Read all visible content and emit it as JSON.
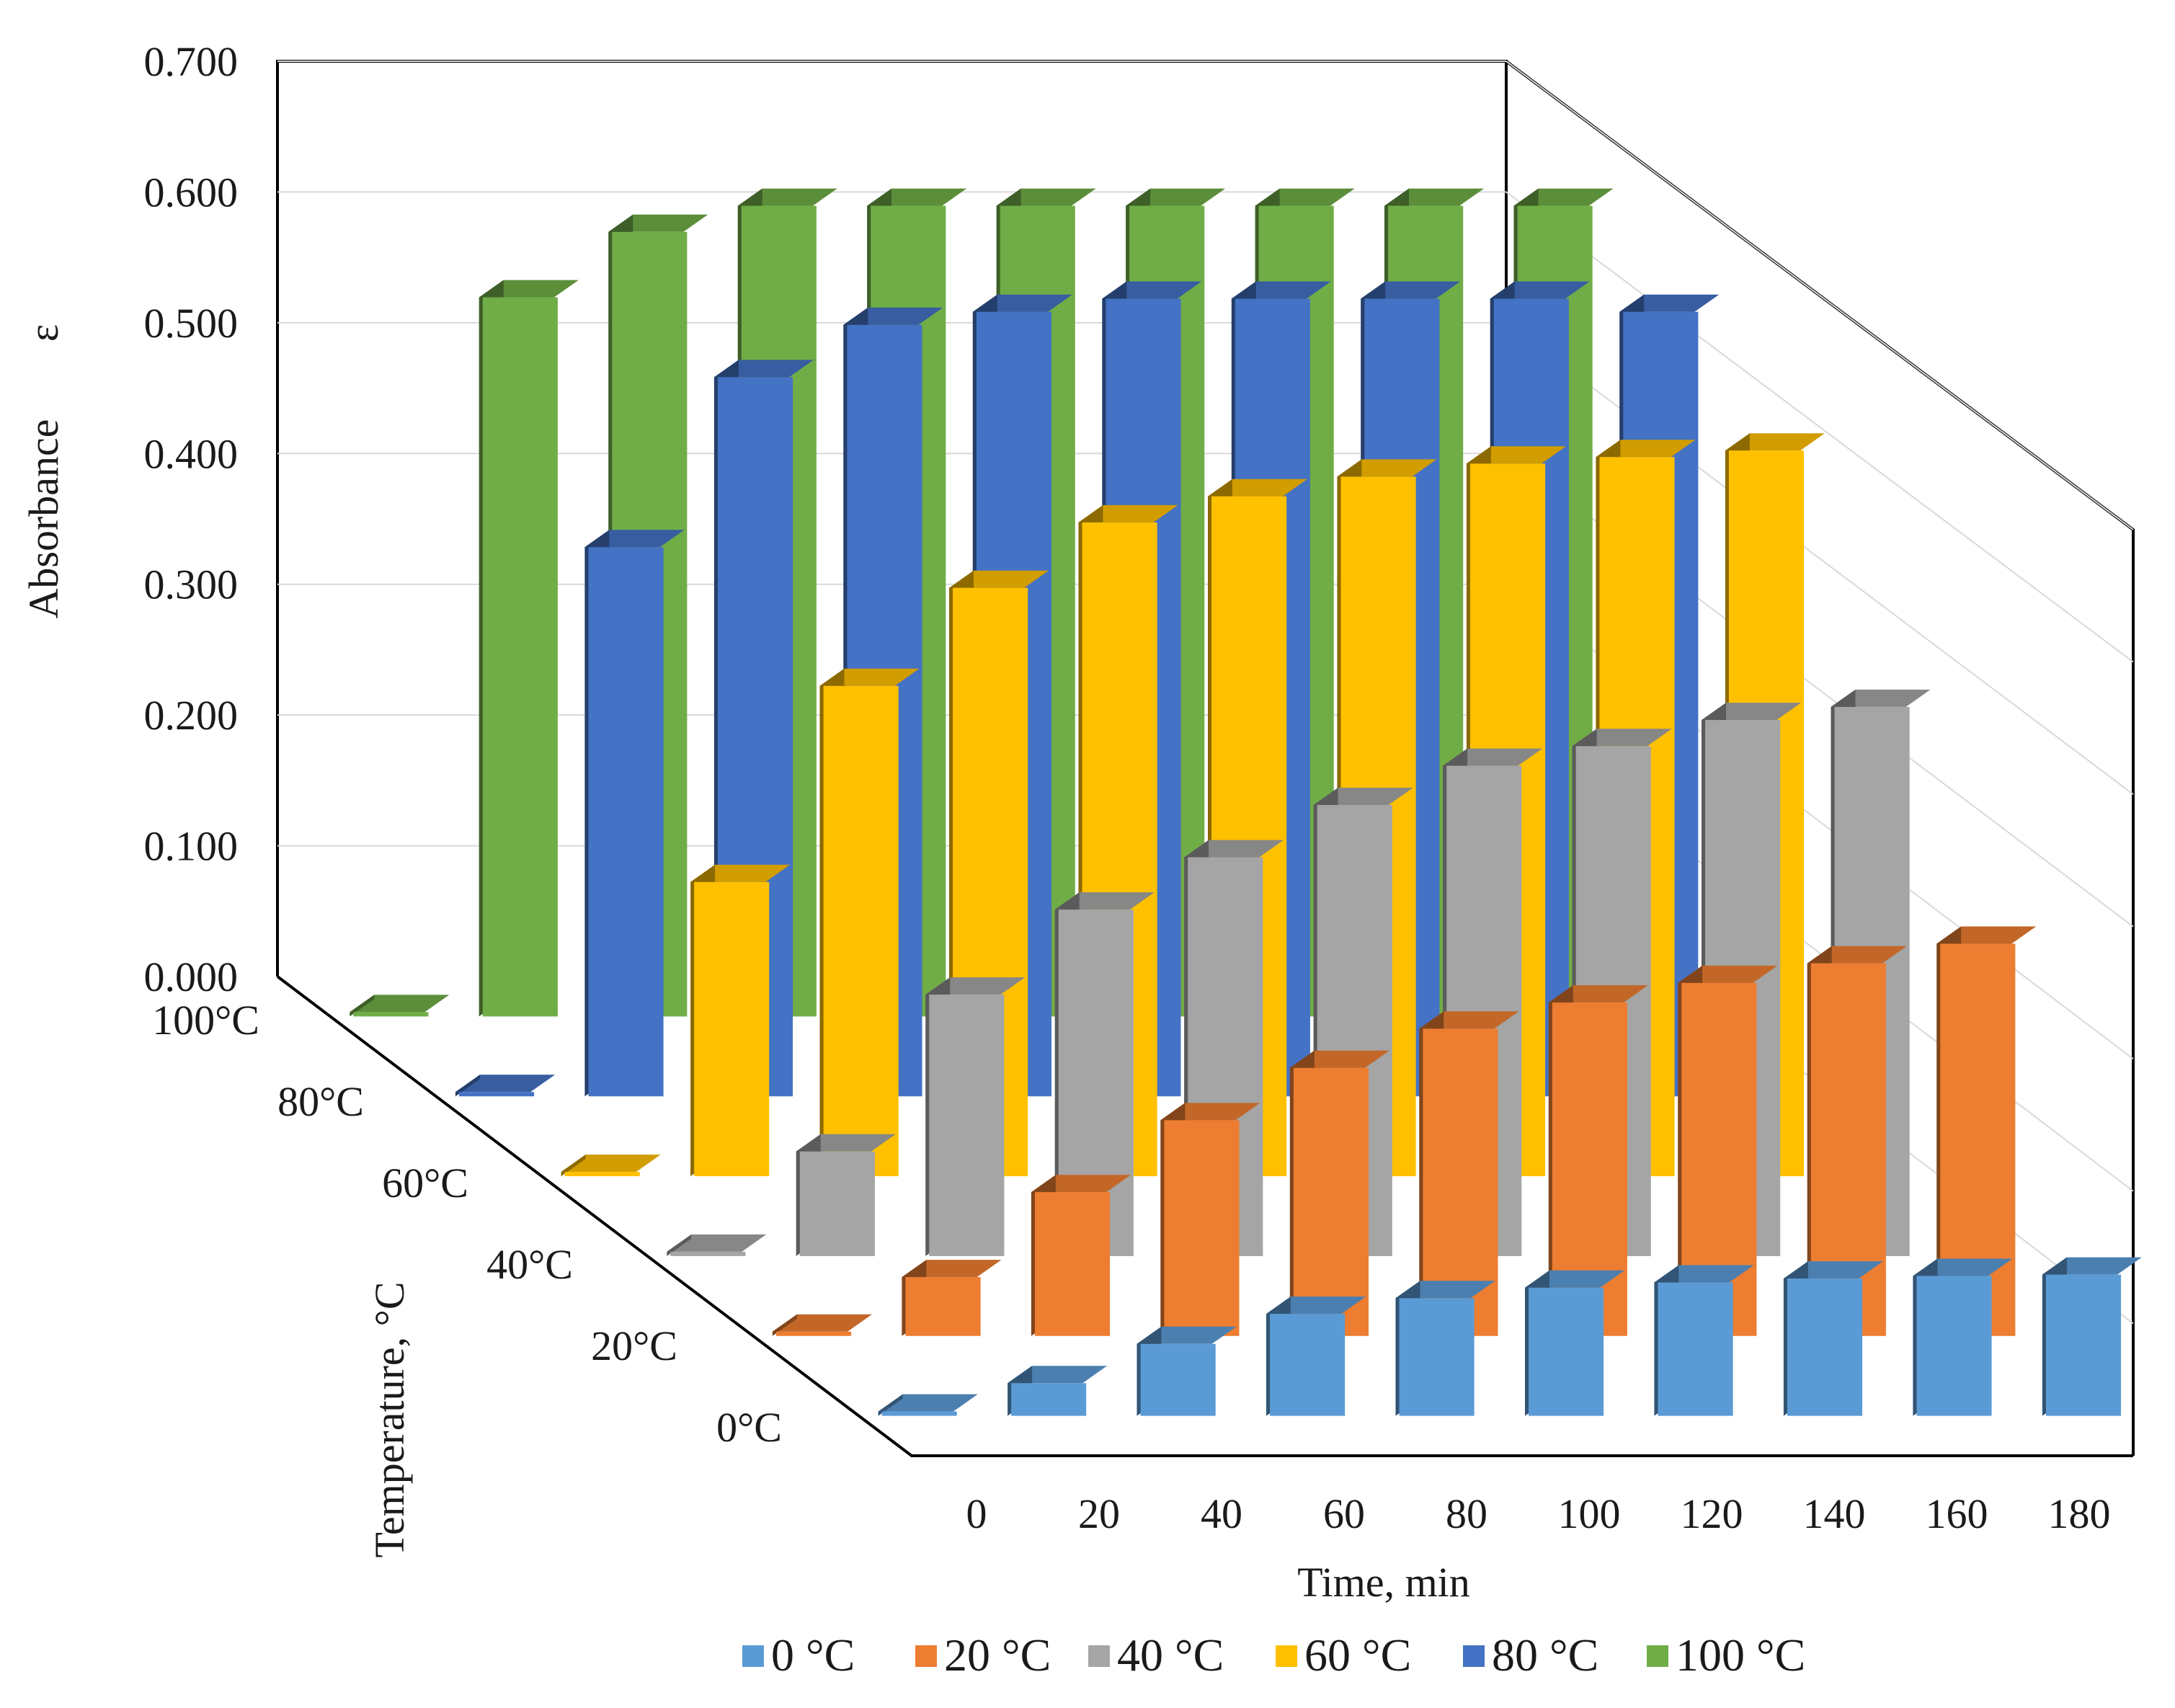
{
  "chart_data": {
    "type": "bar3d",
    "x_categories": [
      "0",
      "20",
      "40",
      "60",
      "80",
      "100",
      "120",
      "140",
      "160",
      "180"
    ],
    "xlabel": "Time, min",
    "ylabel": "Absorbance",
    "ylabel_symbol": "ε",
    "zlabel": "Temperature, °C",
    "y_ticks": [
      "0.000",
      "0.100",
      "0.200",
      "0.300",
      "0.400",
      "0.500",
      "0.600",
      "0.700"
    ],
    "ylim": [
      0,
      0.7
    ],
    "series": [
      {
        "name": "0 °C",
        "depth_label": "0°C",
        "color": "#5B9BD5",
        "values": [
          0,
          0.025,
          0.055,
          0.078,
          0.09,
          0.098,
          0.102,
          0.105,
          0.107,
          0.108
        ]
      },
      {
        "name": "20 °C",
        "depth_label": "20°C",
        "color": "#ED7D31",
        "values": [
          0,
          0.045,
          0.11,
          0.165,
          0.205,
          0.235,
          0.255,
          0.27,
          0.285,
          0.3
        ]
      },
      {
        "name": "40 °C",
        "depth_label": "40°C",
        "color": "#A5A5A5",
        "values": [
          0,
          0.08,
          0.2,
          0.265,
          0.305,
          0.345,
          0.375,
          0.39,
          0.41,
          0.42
        ]
      },
      {
        "name": "60 °C",
        "depth_label": "60°C",
        "color": "#FFC000",
        "values": [
          0,
          0.225,
          0.375,
          0.45,
          0.5,
          0.52,
          0.535,
          0.545,
          0.55,
          0.555
        ]
      },
      {
        "name": "80 °C",
        "depth_label": "80°C",
        "color": "#4472C4",
        "values": [
          0,
          0.42,
          0.55,
          0.59,
          0.6,
          0.61,
          0.61,
          0.61,
          0.61,
          0.6
        ]
      },
      {
        "name": "100 °C",
        "depth_label": "100°C",
        "color": "#70AD47",
        "values": [
          0,
          0.55,
          0.6,
          0.62,
          0.62,
          0.62,
          0.62,
          0.62,
          0.62,
          0.62
        ]
      }
    ],
    "legend_position": "bottom"
  }
}
